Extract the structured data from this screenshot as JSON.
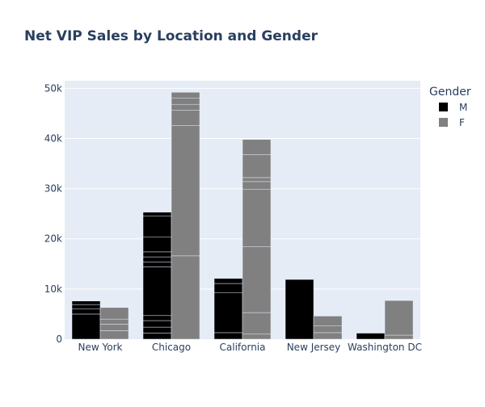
{
  "chart_data": {
    "type": "bar",
    "barmode": "group-stacked",
    "title": "Net VIP Sales by Location and Gender",
    "xlabel": "",
    "ylabel": "",
    "categories": [
      "New York",
      "Chicago",
      "California",
      "New Jersey",
      "Washington DC"
    ],
    "ylim": [
      0,
      51500
    ],
    "yticks": [
      0,
      10000,
      20000,
      30000,
      40000,
      50000
    ],
    "ytick_labels": [
      "0",
      "10k",
      "20k",
      "30k",
      "40k",
      "50k"
    ],
    "grid": true,
    "legend": {
      "title": "Gender",
      "placement": "top-right"
    },
    "series": [
      {
        "name": "M",
        "color": "#000000",
        "stacks": [
          [
            5000,
            1000,
            900,
            700
          ],
          [
            1200,
            1200,
            1300,
            1000,
            9700,
            1000,
            1000,
            1000,
            3000,
            4100,
            800
          ],
          [
            1300,
            8000,
            1800,
            1000
          ],
          [
            11900
          ],
          [
            1200
          ]
        ]
      },
      {
        "name": "F",
        "color": "#808080",
        "stacks": [
          [
            1700,
            1300,
            1000,
            2300
          ],
          [
            16600,
            26000,
            3000,
            1200,
            1200,
            1200
          ],
          [
            1000,
            4300,
            13100,
            11500,
            1500,
            800,
            4600,
            3000
          ],
          [
            1300,
            1400,
            1900
          ],
          [
            800,
            6900
          ]
        ]
      }
    ]
  }
}
